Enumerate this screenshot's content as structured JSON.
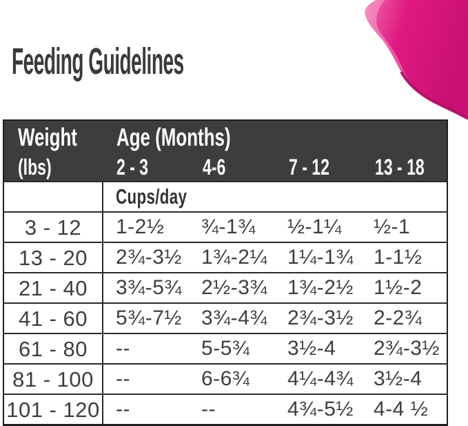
{
  "page": {
    "title": "Feeding Guidelines"
  },
  "colors": {
    "accent_pink": "#e0187f",
    "accent_pink_light": "#ef67ab",
    "accent_pink_dark": "#a80d62",
    "header_bg": "#3d3d3d",
    "header_text": "#ffffff",
    "title_text": "#3a3a3a",
    "table_border": "#1f1f1f",
    "cell_text": "#3e3e3e"
  },
  "decoration": {
    "corner_shape": "pink-swoosh"
  },
  "table": {
    "header": {
      "weight_label": "Weight",
      "weight_sub": "(lbs)",
      "age_label": "Age (Months)",
      "age_columns": [
        "2 - 3",
        "4-6",
        "7 - 12",
        "13 - 18"
      ]
    },
    "units_label": "Cups/day",
    "rows": [
      {
        "weight": "3 - 12",
        "values": [
          "1-2½",
          "¾-1¾",
          "½-1¼",
          "½-1"
        ]
      },
      {
        "weight": "13 - 20",
        "values": [
          "2¾-3½",
          "1¾-2¼",
          "1¼-1¾",
          "1-1½"
        ]
      },
      {
        "weight": "21 - 40",
        "values": [
          "3¾-5¾",
          "2½-3¾",
          "1¾-2½",
          "1½-2"
        ]
      },
      {
        "weight": "41 - 60",
        "values": [
          "5¾-7½",
          "3¾-4¾",
          "2¾-3½",
          "2-2¾"
        ]
      },
      {
        "weight": "61 - 80",
        "values": [
          "--",
          "5-5¾",
          "3½-4",
          "2¾-3½"
        ]
      },
      {
        "weight": "81 - 100",
        "values": [
          "--",
          "6-6¾",
          "4¼-4¾",
          "3½-4"
        ]
      },
      {
        "weight": "101 - 120",
        "values": [
          "--",
          "--",
          "4¾-5½",
          "4-4 ½"
        ]
      }
    ]
  }
}
